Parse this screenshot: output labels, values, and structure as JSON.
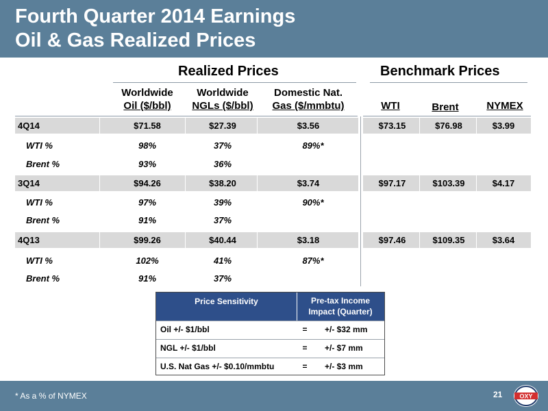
{
  "header": {
    "title_line1": "Fourth Quarter 2014 Earnings",
    "title_line2": "Oil & Gas Realized Prices"
  },
  "sections": {
    "realized": "Realized Prices",
    "benchmark": "Benchmark Prices"
  },
  "columns": {
    "oil_l1": "Worldwide",
    "oil_l2": "Oil ($/bbl)",
    "ngl_l1": "Worldwide",
    "ngl_l2": "NGLs ($/bbl)",
    "gas_l1": "Domestic Nat.",
    "gas_l2": "Gas ($/mmbtu)",
    "wti": "WTI",
    "brent": "Brent",
    "nymex": "NYMEX"
  },
  "table": {
    "rows": [
      {
        "label": "4Q14",
        "oil": "$71.58",
        "ngl": "$27.39",
        "gas": "$3.56",
        "wti": "$73.15",
        "brent": "$76.98",
        "nymex": "$3.99"
      },
      {
        "label": "WTI %",
        "oil": "98%",
        "ngl": "37%",
        "gas": "89%*"
      },
      {
        "label": "Brent %",
        "oil": "93%",
        "ngl": "36%",
        "gas": ""
      },
      {
        "label": "3Q14",
        "oil": "$94.26",
        "ngl": "$38.20",
        "gas": "$3.74",
        "wti": "$97.17",
        "brent": "$103.39",
        "nymex": "$4.17"
      },
      {
        "label": "WTI %",
        "oil": "97%",
        "ngl": "39%",
        "gas": "90%*"
      },
      {
        "label": "Brent %",
        "oil": "91%",
        "ngl": "37%",
        "gas": ""
      },
      {
        "label": "4Q13",
        "oil": "$99.26",
        "ngl": "$40.44",
        "gas": "$3.18",
        "wti": "$97.46",
        "brent": "$109.35",
        "nymex": "$3.64"
      },
      {
        "label": "WTI %",
        "oil": "102%",
        "ngl": "41%",
        "gas": "87%*"
      },
      {
        "label": "Brent %",
        "oil": "91%",
        "ngl": "37%",
        "gas": ""
      }
    ]
  },
  "sensitivity": {
    "head_col1": "Price Sensitivity",
    "head_col2": "Pre-tax Income\nImpact (Quarter)",
    "rows": [
      {
        "item": "Oil +/- $1/bbl",
        "eq": "=",
        "impact": "+/- $32 mm"
      },
      {
        "item": "NGL +/- $1/bbl",
        "eq": "=",
        "impact": "+/- $7 mm"
      },
      {
        "item": "U.S. Nat Gas +/- $0.10/mmbtu",
        "eq": "=",
        "impact": "+/- $3 mm"
      }
    ]
  },
  "footer": {
    "note": "* As a % of NYMEX",
    "page": "21",
    "logo_text": "OXY"
  },
  "colors": {
    "header_bg": "#5b7f99",
    "band": "#d9d9d9",
    "sens_head": "#2e4f8a",
    "logo_red": "#d32f2f"
  }
}
